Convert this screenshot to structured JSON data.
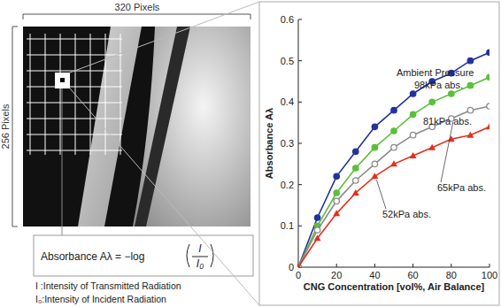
{
  "image_panel": {
    "width_label": "320 Pixels",
    "height_label": "256 Pixels",
    "formula": {
      "lhs": "Absorbance Aλ = −log",
      "numerator": "I",
      "denominator": "I₀"
    },
    "notes": [
      "I :Intensity of Transmitted Radiation",
      "I₀:Intensity of Incident Radiation"
    ]
  },
  "chart_data": {
    "type": "line",
    "x_label": "CNG Concentration [vol%, Air Balance]",
    "y_label": "Absorbance Aλ",
    "annotations": [
      "Ambient Pressure"
    ],
    "x": [
      0,
      10,
      20,
      30,
      40,
      50,
      60,
      70,
      80,
      90,
      100
    ],
    "series": [
      {
        "name": "98kPa abs.",
        "color": "#22329e",
        "marker": "circle",
        "values": [
          0,
          0.12,
          0.22,
          0.28,
          0.34,
          0.38,
          0.42,
          0.45,
          0.47,
          0.5,
          0.52
        ]
      },
      {
        "name": "81kPa abs.",
        "color": "#5cbf3c",
        "marker": "circle",
        "values": [
          0,
          0.1,
          0.18,
          0.24,
          0.29,
          0.33,
          0.37,
          0.4,
          0.42,
          0.44,
          0.46
        ]
      },
      {
        "name": "65kPa abs.",
        "color": "#8a8a8a",
        "marker": "open_circle",
        "values": [
          0,
          0.09,
          0.16,
          0.21,
          0.25,
          0.29,
          0.32,
          0.34,
          0.36,
          0.38,
          0.39
        ]
      },
      {
        "name": "52kPa abs.",
        "color": "#e2301f",
        "marker": "triangle",
        "values": [
          0,
          0.07,
          0.13,
          0.18,
          0.22,
          0.25,
          0.27,
          0.29,
          0.31,
          0.32,
          0.34
        ]
      }
    ],
    "xlim": [
      0,
      100
    ],
    "xticks": [
      0,
      20,
      40,
      60,
      80,
      100
    ],
    "ylim": [
      0,
      0.6
    ],
    "yticks": [
      0,
      0.1,
      0.2,
      0.3,
      0.4,
      0.5,
      0.6
    ],
    "grid": false
  }
}
